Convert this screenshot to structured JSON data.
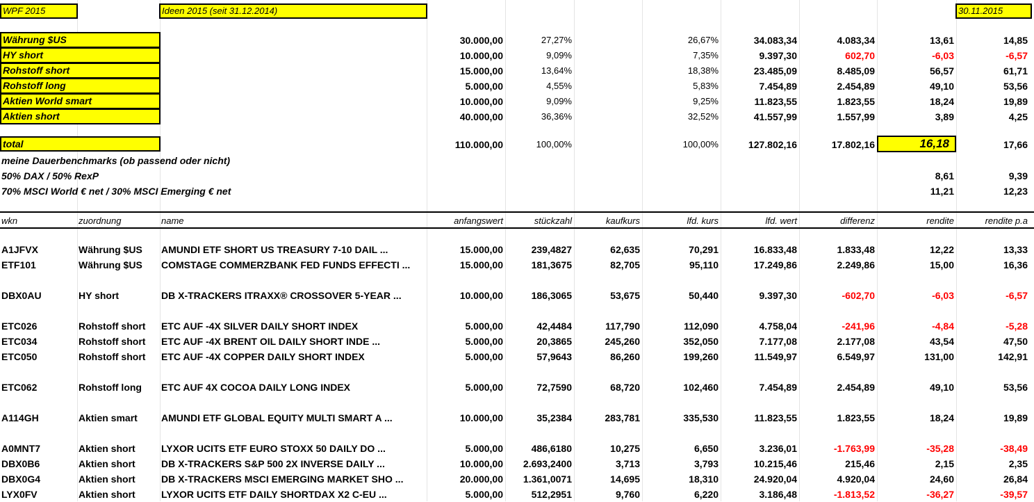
{
  "header": {
    "left": "WPF 2015",
    "mid": "Ideen 2015 (seit 31.12.2014)",
    "right": "30.11.2015"
  },
  "summary": [
    {
      "cat": "Währung $US",
      "anfang": "30.000,00",
      "pct1": "27,27%",
      "pct2": "26,67%",
      "wert": "34.083,34",
      "diff": "4.083,34",
      "rendite": "13,61",
      "rpa": "14,85",
      "neg": false
    },
    {
      "cat": "HY short",
      "anfang": "10.000,00",
      "pct1": "9,09%",
      "pct2": "7,35%",
      "wert": "9.397,30",
      "diff": "602,70",
      "rendite": "-6,03",
      "rpa": "-6,57",
      "neg": true
    },
    {
      "cat": "Rohstoff short",
      "anfang": "15.000,00",
      "pct1": "13,64%",
      "pct2": "18,38%",
      "wert": "23.485,09",
      "diff": "8.485,09",
      "rendite": "56,57",
      "rpa": "61,71",
      "neg": false
    },
    {
      "cat": "Rohstoff long",
      "anfang": "5.000,00",
      "pct1": "4,55%",
      "pct2": "5,83%",
      "wert": "7.454,89",
      "diff": "2.454,89",
      "rendite": "49,10",
      "rpa": "53,56",
      "neg": false
    },
    {
      "cat": "Aktien World smart",
      "anfang": "10.000,00",
      "pct1": "9,09%",
      "pct2": "9,25%",
      "wert": "11.823,55",
      "diff": "1.823,55",
      "rendite": "18,24",
      "rpa": "19,89",
      "neg": false
    },
    {
      "cat": "Aktien short",
      "anfang": "40.000,00",
      "pct1": "36,36%",
      "pct2": "32,52%",
      "wert": "41.557,99",
      "diff": "1.557,99",
      "rendite": "3,89",
      "rpa": "4,25",
      "neg": false
    }
  ],
  "total": {
    "label": "total",
    "anfang": "110.000,00",
    "pct1": "100,00%",
    "pct2": "100,00%",
    "wert": "127.802,16",
    "diff": "17.802,16",
    "rendite": "16,18",
    "rpa": "17,66"
  },
  "benchmarks": {
    "title": "meine Dauerbenchmarks (ob passend oder nicht)",
    "b1": {
      "label": "50% DAX / 50% RexP",
      "rendite": "8,61",
      "rpa": "9,39"
    },
    "b2": {
      "label": "70% MSCI World € net / 30% MSCI Emerging € net",
      "rendite": "11,21",
      "rpa": "12,23"
    }
  },
  "columns": {
    "wkn": "wkn",
    "zuordnung": "zuordnung",
    "name": "name",
    "anfangswert": "anfangswert",
    "stueckzahl": "stückzahl",
    "kaufkurs": "kaufkurs",
    "lfdkurs": "lfd. kurs",
    "lfdwert": "lfd. wert",
    "differenz": "differenz",
    "rendite": "rendite",
    "renditepa": "rendite p.a"
  },
  "positions": [
    {
      "wkn": "A1JFVX",
      "zu": "Währung $US",
      "name": "AMUNDI ETF SHORT US TREASURY 7-10 DAIL ...",
      "anf": "15.000,00",
      "stk": "239,4827",
      "kk": "62,635",
      "lk": "70,291",
      "lw": "16.833,48",
      "diff": "1.833,48",
      "ren": "12,22",
      "rpa": "13,33",
      "neg": false
    },
    {
      "wkn": "ETF101",
      "zu": "Währung $US",
      "name": "COMSTAGE COMMERZBANK FED FUNDS EFFECTI ...",
      "anf": "15.000,00",
      "stk": "181,3675",
      "kk": "82,705",
      "lk": "95,110",
      "lw": "17.249,86",
      "diff": "2.249,86",
      "ren": "15,00",
      "rpa": "16,36",
      "neg": false
    },
    {
      "wkn": "DBX0AU",
      "zu": "HY short",
      "name": "DB X-TRACKERS ITRAXX® CROSSOVER 5-YEAR ...",
      "anf": "10.000,00",
      "stk": "186,3065",
      "kk": "53,675",
      "lk": "50,440",
      "lw": "9.397,30",
      "diff": "-602,70",
      "ren": "-6,03",
      "rpa": "-6,57",
      "neg": true
    },
    {
      "wkn": "ETC026",
      "zu": "Rohstoff short",
      "name": "ETC AUF -4X SILVER DAILY SHORT INDEX",
      "anf": "5.000,00",
      "stk": "42,4484",
      "kk": "117,790",
      "lk": "112,090",
      "lw": "4.758,04",
      "diff": "-241,96",
      "ren": "-4,84",
      "rpa": "-5,28",
      "neg": true
    },
    {
      "wkn": "ETC034",
      "zu": "Rohstoff short",
      "name": "ETC AUF -4X BRENT OIL DAILY SHORT INDE ...",
      "anf": "5.000,00",
      "stk": "20,3865",
      "kk": "245,260",
      "lk": "352,050",
      "lw": "7.177,08",
      "diff": "2.177,08",
      "ren": "43,54",
      "rpa": "47,50",
      "neg": false
    },
    {
      "wkn": "ETC050",
      "zu": "Rohstoff short",
      "name": "ETC AUF -4X COPPER DAILY SHORT INDEX",
      "anf": "5.000,00",
      "stk": "57,9643",
      "kk": "86,260",
      "lk": "199,260",
      "lw": "11.549,97",
      "diff": "6.549,97",
      "ren": "131,00",
      "rpa": "142,91",
      "neg": false
    },
    {
      "wkn": "ETC062",
      "zu": "Rohstoff long",
      "name": "ETC AUF 4X COCOA DAILY LONG INDEX",
      "anf": "5.000,00",
      "stk": "72,7590",
      "kk": "68,720",
      "lk": "102,460",
      "lw": "7.454,89",
      "diff": "2.454,89",
      "ren": "49,10",
      "rpa": "53,56",
      "neg": false
    },
    {
      "wkn": "A114GH",
      "zu": "Aktien smart",
      "name": "AMUNDI ETF GLOBAL EQUITY MULTI SMART A ...",
      "anf": "10.000,00",
      "stk": "35,2384",
      "kk": "283,781",
      "lk": "335,530",
      "lw": "11.823,55",
      "diff": "1.823,55",
      "ren": "18,24",
      "rpa": "19,89",
      "neg": false
    },
    {
      "wkn": "A0MNT7",
      "zu": "Aktien short",
      "name": "LYXOR UCITS ETF EURO STOXX 50 DAILY DO ...",
      "anf": "5.000,00",
      "stk": "486,6180",
      "kk": "10,275",
      "lk": "6,650",
      "lw": "3.236,01",
      "diff": "-1.763,99",
      "ren": "-35,28",
      "rpa": "-38,49",
      "neg": true
    },
    {
      "wkn": "DBX0B6",
      "zu": "Aktien short",
      "name": "DB X-TRACKERS S&P 500 2X INVERSE DAILY ...",
      "anf": "10.000,00",
      "stk": "2.693,2400",
      "kk": "3,713",
      "lk": "3,793",
      "lw": "10.215,46",
      "diff": "215,46",
      "ren": "2,15",
      "rpa": "2,35",
      "neg": false
    },
    {
      "wkn": "DBX0G4",
      "zu": "Aktien short",
      "name": "DB X-TRACKERS MSCI EMERGING MARKET SHO ...",
      "anf": "20.000,00",
      "stk": "1.361,0071",
      "kk": "14,695",
      "lk": "18,310",
      "lw": "24.920,04",
      "diff": "4.920,04",
      "ren": "24,60",
      "rpa": "26,84",
      "neg": false
    },
    {
      "wkn": "LYX0FV",
      "zu": "Aktien short",
      "name": "LYXOR UCITS ETF DAILY SHORTDAX X2 C-EU ...",
      "anf": "5.000,00",
      "stk": "512,2951",
      "kk": "9,760",
      "lk": "6,220",
      "lw": "3.186,48",
      "diff": "-1.813,52",
      "ren": "-36,27",
      "rpa": "-39,57",
      "neg": true
    }
  ]
}
